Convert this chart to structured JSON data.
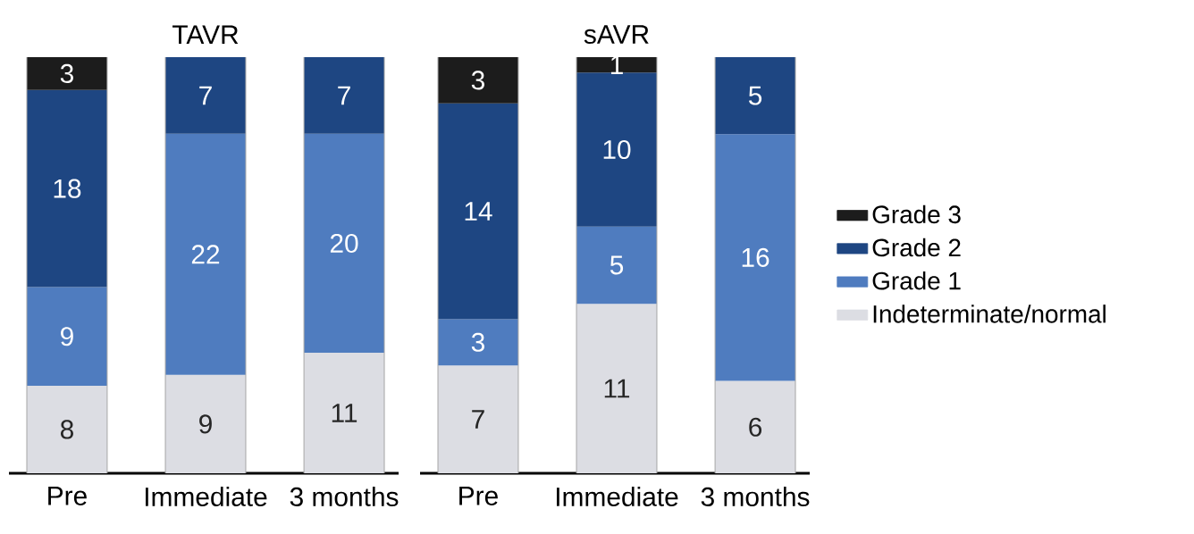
{
  "chart_data": [
    {
      "type": "bar",
      "title": "TAVR",
      "stacked": true,
      "data_labels": true,
      "legend": false,
      "categories": [
        "Pre",
        "Immediate",
        "3 months"
      ],
      "series": [
        {
          "color": "#dcdde3",
          "values": [
            8,
            9,
            11
          ]
        },
        {
          "color": "#4f7cbf",
          "values": [
            9,
            22,
            20
          ]
        },
        {
          "color": "#1e4682",
          "values": [
            18,
            7,
            7
          ]
        },
        {
          "color": "#1c1c1c",
          "values": [
            3,
            null,
            null
          ]
        }
      ]
    },
    {
      "type": "bar",
      "title": "sAVR",
      "stacked": true,
      "data_labels": true,
      "legend": "right",
      "categories": [
        "Pre",
        "Immediate",
        "3 months"
      ],
      "series": [
        {
          "name": "Indeterminate/normal",
          "color": "#dcdde3",
          "values": [
            7,
            11,
            6
          ]
        },
        {
          "name": "Grade 1",
          "color": "#4f7cbf",
          "values": [
            3,
            5,
            16
          ]
        },
        {
          "name": "Grade 2",
          "color": "#1e4682",
          "values": [
            14,
            10,
            5
          ]
        },
        {
          "name": "Grade 3",
          "color": "#1c1c1c",
          "values": [
            3,
            1,
            null
          ]
        }
      ]
    }
  ]
}
